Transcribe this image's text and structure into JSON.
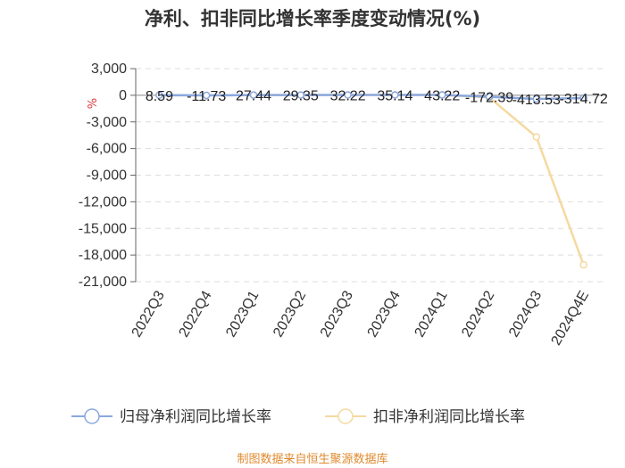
{
  "chart_data": {
    "type": "line",
    "title": "净利、扣非同比增长率季度变动情况(%)",
    "ylabel": "%",
    "ylim": [
      -21000,
      3000
    ],
    "yticks": [
      3000,
      0,
      -3000,
      -6000,
      -9000,
      -12000,
      -15000,
      -18000,
      -21000
    ],
    "ytick_labels": [
      "3,000",
      "0",
      "-3,000",
      "-6,000",
      "-9,000",
      "-12,000",
      "-15,000",
      "-18,000",
      "-21,000"
    ],
    "categories": [
      "2022Q3",
      "2022Q4",
      "2023Q1",
      "2023Q2",
      "2023Q3",
      "2023Q4",
      "2024Q1",
      "2024Q2",
      "2024Q3",
      "2024Q4E"
    ],
    "grid": true,
    "legend_position": "bottom",
    "series": [
      {
        "name": "归母净利润同比增长率",
        "color": "#8aa8e0",
        "values": [
          8.59,
          -11.73,
          27.44,
          29.35,
          32.22,
          35.14,
          43.22,
          -172.39,
          -413.53,
          -314.72
        ],
        "labels": [
          "8.59",
          "-11.73",
          "27.44",
          "29.35",
          "32.22",
          "35.14",
          "43.22",
          "-172.39",
          "-413.53",
          "-314.72"
        ]
      },
      {
        "name": "扣非净利润同比增长率",
        "color": "#f5d9a0",
        "values": [
          10,
          -12,
          30,
          28,
          33,
          36,
          45,
          -240,
          -4700,
          -19100
        ]
      }
    ],
    "source": "制图数据来自恒生聚源数据库"
  }
}
